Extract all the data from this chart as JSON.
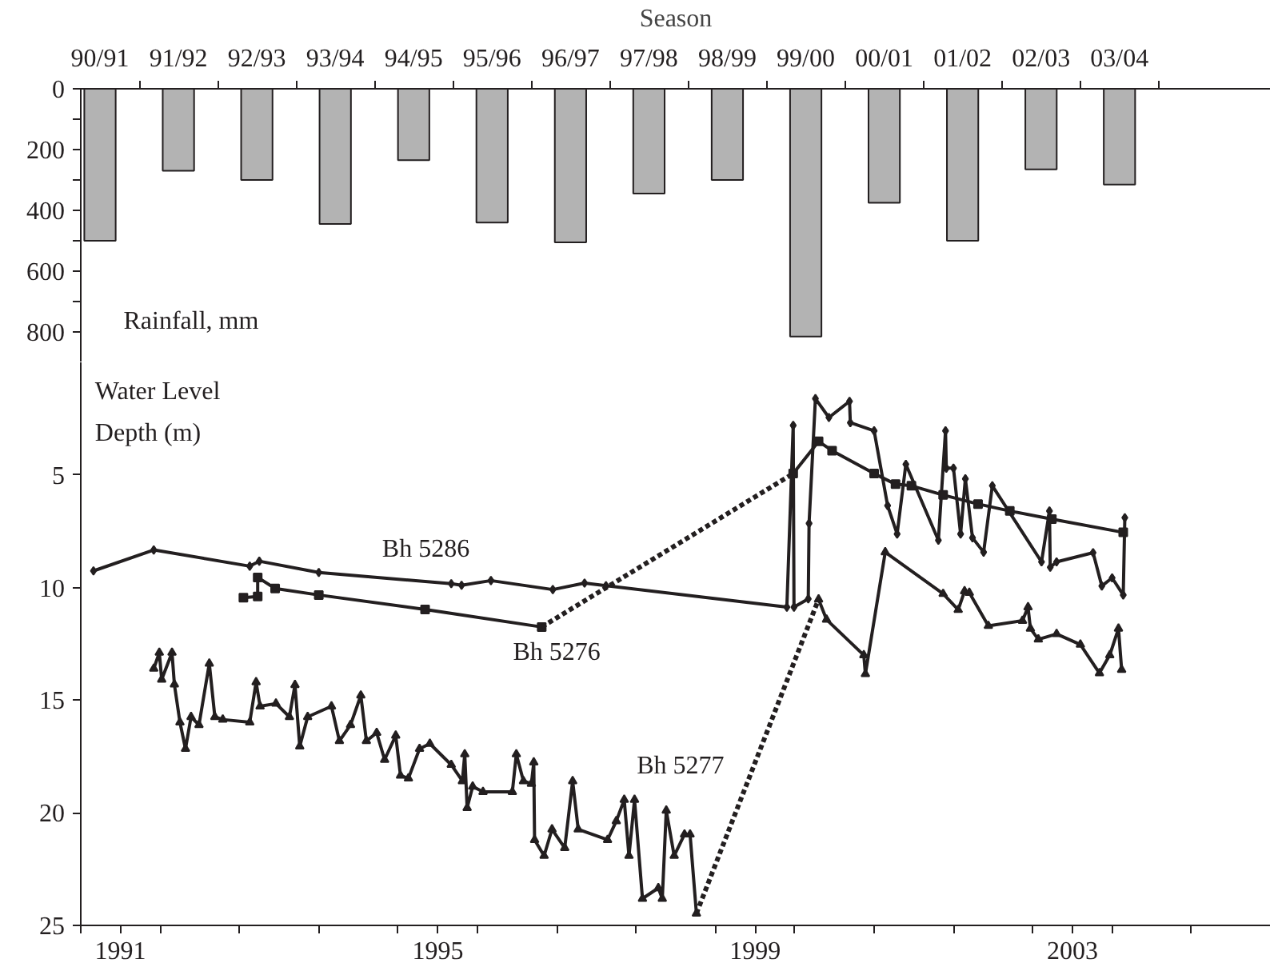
{
  "chart_data": [
    {
      "type": "bar",
      "xlabel": "Season",
      "ylabel": "Rainfall, mm",
      "categories": [
        "90/91",
        "91/92",
        "92/93",
        "93/94",
        "94/95",
        "95/96",
        "96/97",
        "97/98",
        "98/99",
        "99/00",
        "00/01",
        "01/02",
        "02/03",
        "03/04"
      ],
      "values": [
        500,
        270,
        300,
        445,
        235,
        440,
        505,
        345,
        300,
        815,
        375,
        500,
        265,
        315
      ],
      "color": "#b3b3b3",
      "ylim": [
        900,
        0
      ],
      "yticks": [
        0,
        {
          "value": 100,
          "label": null
        },
        200,
        {
          "value": 300,
          "label": null
        },
        400,
        {
          "value": 500,
          "label": null
        },
        600,
        {
          "value": 700,
          "label": null
        },
        800
      ],
      "grid": false
    },
    {
      "type": "line",
      "ylabel": "Water Level\nDepth (m)",
      "xlim": [
        1991,
        2006
      ],
      "ylim": [
        25,
        0
      ],
      "xticks": [
        {
          "value": 1991,
          "label": null
        },
        {
          "value": 1992,
          "label": null
        },
        {
          "value": 1993,
          "label": null
        },
        {
          "value": 1994,
          "label": null
        },
        {
          "value": 1995,
          "label": null
        },
        {
          "value": 1996,
          "label": null
        },
        {
          "value": 1997,
          "label": null
        },
        {
          "value": 1998,
          "label": null
        },
        {
          "value": 1999,
          "label": null
        },
        {
          "value": 2000,
          "label": null
        },
        {
          "value": 2001,
          "label": null
        },
        {
          "value": 2002,
          "label": null
        },
        {
          "value": 2003,
          "label": null
        },
        {
          "value": 2004,
          "label": null
        },
        {
          "value": 2005,
          "label": null
        },
        {
          "value": 1991.5,
          "label": "1991"
        },
        {
          "value": 1995.5,
          "label": "1995"
        },
        {
          "value": 1999.5,
          "label": "1999"
        },
        {
          "value": 2003.5,
          "label": "2003"
        }
      ],
      "yticks": [
        5,
        10,
        15,
        20,
        25
      ],
      "grid": false,
      "series": [
        {
          "color": "#231f20",
          "marker": "diamond",
          "line_style": "solid",
          "x": [
            1991.16,
            1991.92,
            1993.13,
            1993.25,
            1994.0,
            1995.67,
            1995.8,
            1996.17,
            1996.95,
            1997.35,
            1997.62,
            1999.9,
            1999.98,
            1999.99,
            2000.17,
            2000.18,
            2000.26,
            2000.43,
            2000.69,
            2000.7,
            2001.0,
            2001.17,
            2001.29,
            2001.4,
            2001.81,
            2001.9,
            2001.91,
            2002.0,
            2002.09,
            2002.15,
            2002.24,
            2002.38,
            2002.49,
            2003.11,
            2003.21,
            2003.22,
            2003.3,
            2003.76,
            2003.87,
            2004.0,
            2004.14,
            2004.16
          ],
          "values": [
            9.26,
            8.33,
            9.05,
            8.83,
            9.33,
            9.83,
            9.9,
            9.69,
            10.09,
            9.8,
            9.92,
            10.87,
            2.8,
            10.87,
            10.5,
            7.15,
            1.61,
            2.45,
            1.73,
            2.68,
            3.04,
            6.36,
            7.62,
            4.53,
            7.9,
            3.04,
            4.7,
            4.7,
            7.62,
            5.17,
            7.79,
            8.43,
            5.48,
            8.86,
            6.6,
            9.1,
            8.86,
            8.45,
            9.93,
            9.57,
            10.33,
            6.9
          ]
        },
        {
          "color": "#231f20",
          "marker": "square",
          "line_style": "solid",
          "x": [
            1993.05,
            1993.23,
            1993.23,
            1993.45,
            1994.0,
            1995.34,
            1996.81
          ],
          "values": [
            10.45,
            10.4,
            9.55,
            10.04,
            10.33,
            10.97,
            11.75
          ]
        },
        {
          "color": "#231f20",
          "marker": "square",
          "line_style": "solid",
          "x": [
            1999.98,
            2000.3,
            2000.47,
            2001.0,
            2001.27,
            2001.47,
            2001.87,
            2002.31,
            2002.71,
            2003.24,
            2004.14
          ],
          "values": [
            4.94,
            3.51,
            3.92,
            4.94,
            5.41,
            5.48,
            5.89,
            6.29,
            6.6,
            6.96,
            7.55
          ]
        },
        {
          "color": "#231f20",
          "marker": "triangle",
          "line_style": "solid",
          "x": [
            1991.92,
            1991.99,
            1992.02,
            1992.15,
            1992.18,
            1992.25,
            1992.32,
            1992.39,
            1992.49,
            1992.62,
            1992.69,
            1992.79,
            1993.13,
            1993.21,
            1993.26,
            1993.46,
            1993.63,
            1993.7,
            1993.76,
            1993.86,
            1994.16,
            1994.26,
            1994.4,
            1994.53,
            1994.6,
            1994.73,
            1994.83,
            1994.97,
            1995.03,
            1995.13,
            1995.27,
            1995.4,
            1995.67,
            1995.81,
            1995.84,
            1995.87,
            1995.94,
            1996.07,
            1996.44,
            1996.49,
            1996.58,
            1996.68,
            1996.71,
            1996.72,
            1996.84,
            1996.94,
            1997.1,
            1997.2,
            1997.27,
            1997.64,
            1997.75,
            1997.85,
            1997.91,
            1997.98,
            1998.08,
            1998.28,
            1998.33,
            1998.38,
            1998.48,
            1998.61,
            1998.68,
            1998.76
          ],
          "values": [
            13.6,
            12.89,
            14.08,
            12.89,
            14.3,
            15.98,
            17.16,
            15.74,
            16.1,
            13.37,
            15.74,
            15.86,
            15.98,
            14.2,
            15.27,
            15.15,
            15.74,
            14.32,
            17.05,
            15.74,
            15.27,
            16.81,
            16.1,
            14.79,
            16.81,
            16.45,
            17.64,
            16.57,
            18.35,
            18.47,
            17.16,
            16.93,
            17.87,
            18.59,
            17.4,
            19.78,
            18.83,
            19.07,
            19.07,
            17.4,
            18.59,
            18.71,
            17.76,
            21.2,
            21.91,
            20.73,
            21.56,
            18.59,
            20.73,
            21.2,
            20.37,
            19.42,
            21.91,
            19.42,
            23.81,
            23.34,
            23.81,
            19.9,
            21.91,
            20.96,
            20.96,
            24.47
          ]
        },
        {
          "color": "#231f20",
          "marker": "triangle",
          "line_style": "solid",
          "x": [
            2000.3,
            2000.4,
            2000.87,
            2000.89,
            2001.14,
            2001.87,
            2002.06,
            2002.14,
            2002.2,
            2002.44,
            2002.87,
            2002.94,
            2002.97,
            2003.07,
            2003.3,
            2003.6,
            2003.84,
            2003.97,
            2004.08,
            2004.12
          ],
          "values": [
            10.52,
            11.42,
            13.0,
            13.84,
            8.43,
            10.28,
            10.99,
            10.16,
            10.23,
            11.7,
            11.47,
            10.87,
            11.82,
            12.3,
            12.06,
            12.53,
            13.8,
            13.0,
            11.82,
            13.65
          ]
        },
        {
          "color": "#231f20",
          "marker": "none",
          "line_style": "dotted",
          "x": [
            1996.81,
            1999.98
          ],
          "values": [
            11.75,
            4.94
          ]
        },
        {
          "color": "#231f20",
          "marker": "none",
          "line_style": "dotted",
          "x": [
            1998.76,
            2000.3
          ],
          "values": [
            24.47,
            10.52
          ]
        }
      ],
      "annotations": [
        "Bh 5286",
        "Bh 5276",
        "Bh 5277"
      ]
    }
  ]
}
